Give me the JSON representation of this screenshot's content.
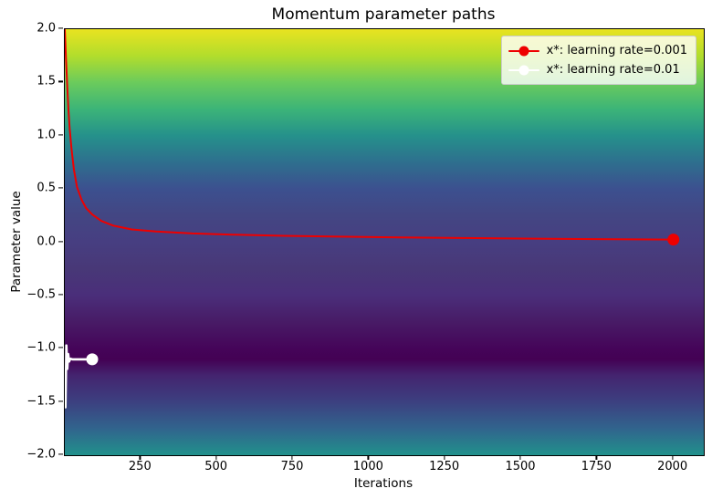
{
  "title": "Momentum parameter paths",
  "axes": {
    "xlabel": "Iterations",
    "ylabel": "Parameter value",
    "xlim": [
      0,
      2100
    ],
    "ylim": [
      -2.0,
      2.0
    ],
    "x_ticks": [
      {
        "value": 250,
        "label": "250"
      },
      {
        "value": 500,
        "label": "500"
      },
      {
        "value": 750,
        "label": "750"
      },
      {
        "value": 1000,
        "label": "1000"
      },
      {
        "value": 1250,
        "label": "1250"
      },
      {
        "value": 1500,
        "label": "1500"
      },
      {
        "value": 1750,
        "label": "1750"
      },
      {
        "value": 2000,
        "label": "2000"
      }
    ],
    "y_ticks": [
      {
        "value": 2.0,
        "label": "2.0"
      },
      {
        "value": 1.5,
        "label": "1.5"
      },
      {
        "value": 1.0,
        "label": "1.0"
      },
      {
        "value": 0.5,
        "label": "0.5"
      },
      {
        "value": 0.0,
        "label": "0.0"
      },
      {
        "value": -0.5,
        "label": "−0.5"
      },
      {
        "value": -1.0,
        "label": "−1.0"
      },
      {
        "value": -1.5,
        "label": "−1.5"
      },
      {
        "value": -2.0,
        "label": "−2.0"
      }
    ]
  },
  "legend": {
    "entries": [
      {
        "label": "x*: learning rate=0.001",
        "color": "#ee0000"
      },
      {
        "label": "x*: learning rate=0.01",
        "color": "#ffffff"
      }
    ],
    "background": "rgba(255,255,255,0.8)",
    "border_color": "#cccccc"
  },
  "chart_data": {
    "type": "line",
    "title": "Momentum parameter paths",
    "xlabel": "Iterations",
    "ylabel": "Parameter value",
    "xlim": [
      0,
      2100
    ],
    "ylim": [
      -2.0,
      2.0
    ],
    "grid": false,
    "legend_position": "upper right",
    "background_note": "vertical viridis colormap of the loss landscape, brightest (high loss) at y=2.0, darkest (minimum) near y=-1.1, teal again at y=-2.0",
    "background_gradient": [
      {
        "pos": 0.0,
        "color": "#e9e320"
      },
      {
        "pos": 6.25,
        "color": "#b2dd2c"
      },
      {
        "pos": 12.5,
        "color": "#6bcb5c"
      },
      {
        "pos": 18.75,
        "color": "#3cb478"
      },
      {
        "pos": 25.0,
        "color": "#25918b"
      },
      {
        "pos": 31.25,
        "color": "#2e6f8e"
      },
      {
        "pos": 37.5,
        "color": "#3c508f"
      },
      {
        "pos": 43.75,
        "color": "#434683"
      },
      {
        "pos": 50.0,
        "color": "#473e81"
      },
      {
        "pos": 56.25,
        "color": "#483877"
      },
      {
        "pos": 62.5,
        "color": "#4a2e7a"
      },
      {
        "pos": 68.75,
        "color": "#481b66"
      },
      {
        "pos": 75.0,
        "color": "#450459"
      },
      {
        "pos": 77.5,
        "color": "#440154"
      },
      {
        "pos": 81.25,
        "color": "#44246f"
      },
      {
        "pos": 87.5,
        "color": "#3c4080"
      },
      {
        "pos": 93.75,
        "color": "#31648d"
      },
      {
        "pos": 100.0,
        "color": "#21918c"
      }
    ],
    "series": [
      {
        "name": "x*: learning rate=0.001",
        "color": "#ee0000",
        "line_width": 2.0,
        "marker": "circle",
        "marker_at": "end",
        "marker_radius": 6.5,
        "points": [
          [
            0,
            2.0
          ],
          [
            4,
            1.72
          ],
          [
            8,
            1.46
          ],
          [
            12,
            1.24
          ],
          [
            16,
            1.07
          ],
          [
            22,
            0.88
          ],
          [
            30,
            0.68
          ],
          [
            40,
            0.52
          ],
          [
            55,
            0.4
          ],
          [
            70,
            0.32
          ],
          [
            90,
            0.26
          ],
          [
            120,
            0.2
          ],
          [
            160,
            0.155
          ],
          [
            220,
            0.12
          ],
          [
            300,
            0.1
          ],
          [
            420,
            0.082
          ],
          [
            560,
            0.07
          ],
          [
            720,
            0.06
          ],
          [
            900,
            0.052
          ],
          [
            1100,
            0.045
          ],
          [
            1300,
            0.039
          ],
          [
            1500,
            0.034
          ],
          [
            1750,
            0.029
          ],
          [
            2000,
            0.025
          ]
        ]
      },
      {
        "name": "x*: learning rate=0.01",
        "color": "#ffffff",
        "line_width": 2.6,
        "marker": "circle",
        "marker_at": "end",
        "marker_radius": 6.5,
        "points": [
          [
            2,
            -1.55
          ],
          [
            5,
            -0.97
          ],
          [
            8,
            -1.19
          ],
          [
            11,
            -1.05
          ],
          [
            14,
            -1.12
          ],
          [
            18,
            -1.095
          ],
          [
            25,
            -1.1
          ],
          [
            90,
            -1.1
          ]
        ]
      }
    ]
  }
}
